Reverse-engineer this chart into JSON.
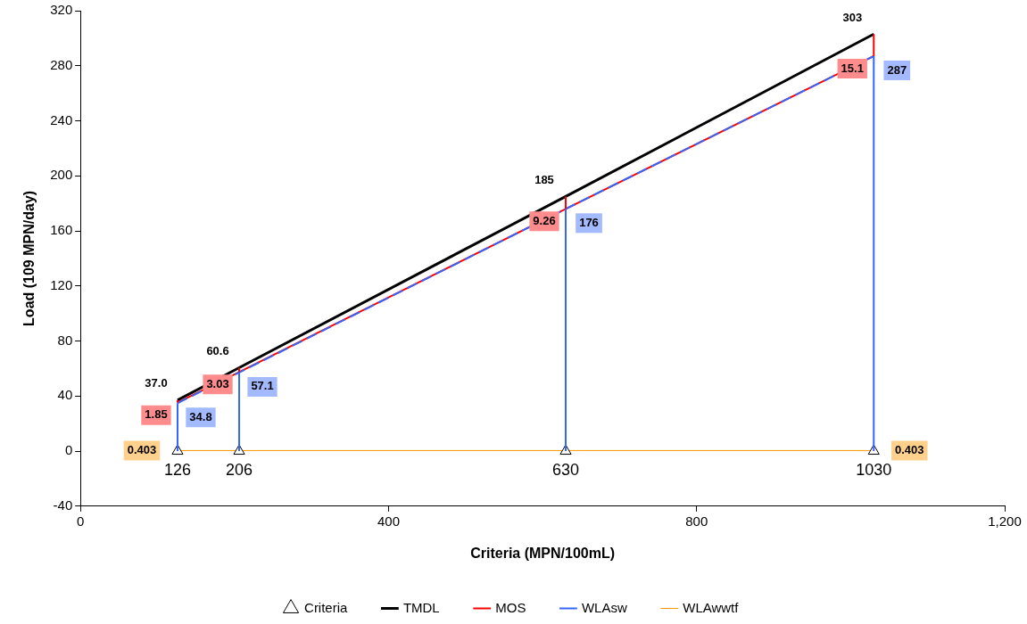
{
  "chart_data": {
    "type": "line",
    "xlabel": "Criteria (MPN/100mL)",
    "ylabel": "Load (109 MPN/day)",
    "xlim": [
      0,
      1200
    ],
    "xticks": [
      0,
      400,
      800,
      {
        "value": 1200,
        "label": "1,200"
      }
    ],
    "ylim": [
      -40,
      320
    ],
    "yticks": [
      -40,
      0,
      40,
      80,
      120,
      160,
      200,
      240,
      280,
      320
    ],
    "grid": false,
    "legend": "bottom",
    "annotations": [
      {
        "text": "126",
        "x": 126,
        "y": 0
      },
      {
        "text": "206",
        "x": 206,
        "y": 0
      },
      {
        "text": "630",
        "x": 630,
        "y": 0
      },
      {
        "text": "1030",
        "x": 1030,
        "y": 0
      },
      {
        "text": "1.85",
        "x": 126,
        "y": 35.2
      },
      {
        "text": "3.03",
        "x": 206,
        "y": 57.5
      },
      {
        "text": "9.26",
        "x": 630,
        "y": 176
      },
      {
        "text": "15.1",
        "x": 1030,
        "y": 287
      }
    ],
    "series": [
      {
        "name": "Criteria",
        "type": "scatter",
        "marker": "triangle",
        "color": "#000000",
        "x": [
          126,
          206,
          630,
          1030
        ],
        "values": [
          0,
          0,
          0,
          0
        ]
      },
      {
        "name": "TMDL",
        "color": "#000000",
        "x": [
          126,
          206,
          630,
          1030
        ],
        "values": [
          37.0,
          60.6,
          185,
          303
        ],
        "value_labels": [
          "37.0",
          "60.6",
          "185",
          "303"
        ]
      },
      {
        "name": "MOS",
        "color": "#ff0000",
        "x": [
          126,
          206,
          630,
          1030
        ],
        "values": [
          35.2,
          57.5,
          176,
          287
        ],
        "errors": [
          [
            35.2,
            37.0
          ],
          [
            57.5,
            60.6
          ],
          [
            176,
            185
          ],
          [
            287,
            303
          ]
        ]
      },
      {
        "name": "WLAsw",
        "color": "#3366ff",
        "line_style": "dashed",
        "x": [
          126,
          206,
          630,
          1030
        ],
        "values": [
          34.8,
          57.1,
          176,
          287
        ],
        "errors": [
          [
            0,
            34.8
          ],
          [
            0,
            57.1
          ],
          [
            0,
            176
          ],
          [
            0,
            287
          ]
        ],
        "value_labels": [
          "34.8",
          "57.1",
          "176",
          "287"
        ]
      },
      {
        "name": "WLAwwtf",
        "color": "#ff9900",
        "x": [
          126,
          206,
          630,
          1030
        ],
        "values": [
          0.403,
          0.403,
          0.403,
          0.403
        ],
        "value_labels": [
          "0.403",
          null,
          null,
          "0.403"
        ]
      }
    ]
  }
}
